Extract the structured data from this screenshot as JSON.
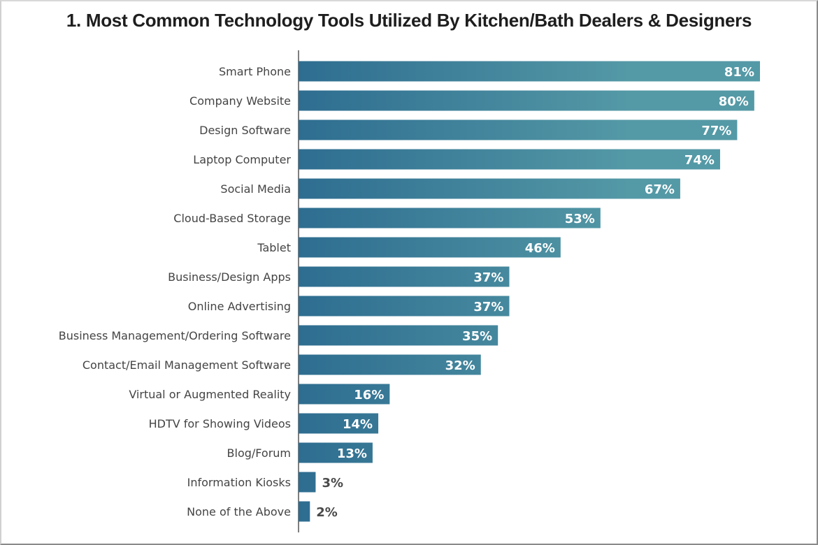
{
  "chart_data": {
    "type": "bar",
    "orientation": "horizontal",
    "title": "1. Most Common Technology Tools Utilized By Kitchen/Bath Dealers & Designers",
    "categories": [
      "Smart Phone",
      "Company Website",
      "Design Software",
      "Laptop Computer",
      "Social Media",
      "Cloud-Based Storage",
      "Tablet",
      "Business/Design Apps",
      "Online Advertising",
      "Business Management/Ordering Software",
      "Contact/Email Management Software",
      "Virtual or Augmented Reality",
      "HDTV for Showing Videos",
      "Blog/Forum",
      "Information Kiosks",
      "None of the Above"
    ],
    "values": [
      81,
      80,
      77,
      74,
      67,
      53,
      46,
      37,
      37,
      35,
      32,
      16,
      14,
      13,
      3,
      2
    ],
    "value_labels": [
      "81%",
      "80%",
      "77%",
      "74%",
      "67%",
      "53%",
      "46%",
      "37%",
      "37%",
      "35%",
      "32%",
      "16%",
      "14%",
      "13%",
      "3%",
      "2%"
    ],
    "unit": "%",
    "xlim": [
      0,
      81
    ],
    "grid": false,
    "colors": {
      "bar_start": "#2e6d90",
      "bar_end": "#5499a6",
      "label_inside": "#ffffff",
      "label_outside": "#4a4a4a"
    }
  }
}
